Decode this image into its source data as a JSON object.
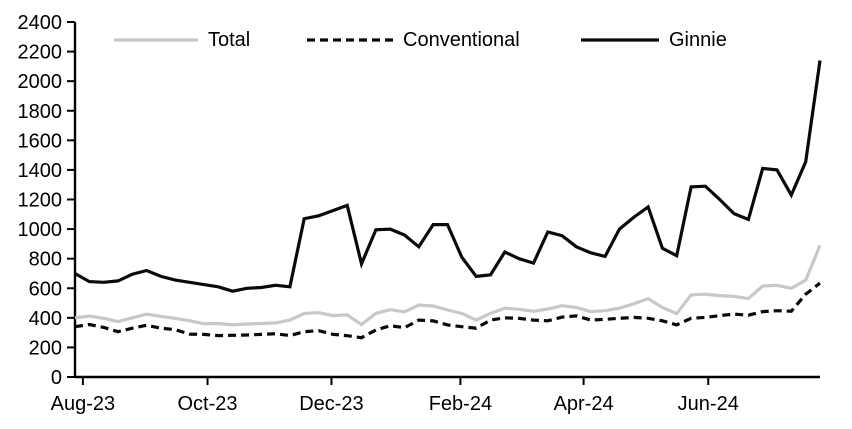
{
  "chart_data": {
    "type": "line",
    "title": "",
    "x_frequency": "weekly",
    "x_range_description": "Aug-23 through Aug-24, weekly observations",
    "x_tick_labels": [
      "Aug-23",
      "Oct-23",
      "Dec-23",
      "Feb-24",
      "Apr-24",
      "Jun-24"
    ],
    "x_tick_week_positions": [
      0.55,
      9.25,
      17.9,
      26.9,
      35.5,
      44.2
    ],
    "ylim": [
      0,
      2400
    ],
    "y_tick_step": 200,
    "y_tick_labels": [
      "0",
      "200",
      "400",
      "600",
      "800",
      "1000",
      "1200",
      "1400",
      "1600",
      "1800",
      "2000",
      "2200",
      "2400"
    ],
    "grid": false,
    "legend_position": "top",
    "background_color": "#ffffff",
    "axis_color": "#000000",
    "series": [
      {
        "name": "Total",
        "color": "#c8c8c8",
        "dash": null,
        "values": [
          400,
          412,
          397,
          375,
          400,
          425,
          410,
          397,
          380,
          360,
          362,
          352,
          358,
          362,
          366,
          385,
          430,
          435,
          415,
          420,
          355,
          430,
          455,
          440,
          487,
          480,
          453,
          430,
          385,
          430,
          465,
          458,
          445,
          460,
          482,
          470,
          442,
          448,
          465,
          495,
          530,
          470,
          428,
          555,
          560,
          550,
          545,
          530,
          615,
          620,
          600,
          655,
          890
        ]
      },
      {
        "name": "Conventional",
        "color": "#0a0a0a",
        "dash": [
          8,
          5
        ],
        "values": [
          340,
          355,
          335,
          306,
          330,
          350,
          330,
          320,
          290,
          288,
          280,
          282,
          284,
          288,
          293,
          280,
          306,
          313,
          289,
          279,
          266,
          318,
          347,
          333,
          385,
          379,
          352,
          340,
          330,
          385,
          400,
          396,
          385,
          380,
          405,
          413,
          385,
          390,
          397,
          403,
          397,
          380,
          352,
          397,
          403,
          415,
          425,
          418,
          442,
          448,
          445,
          560,
          635
        ]
      },
      {
        "name": "Ginnie",
        "color": "#0a0a0a",
        "dash": null,
        "values": [
          700,
          645,
          640,
          650,
          695,
          720,
          680,
          655,
          640,
          625,
          610,
          580,
          600,
          605,
          620,
          610,
          1070,
          1090,
          1125,
          1160,
          765,
          995,
          1000,
          960,
          880,
          1030,
          1030,
          810,
          680,
          690,
          845,
          800,
          770,
          980,
          955,
          880,
          840,
          815,
          1000,
          1080,
          1150,
          870,
          820,
          1285,
          1290,
          1200,
          1105,
          1065,
          1410,
          1400,
          1230,
          1455,
          2140
        ]
      }
    ]
  }
}
